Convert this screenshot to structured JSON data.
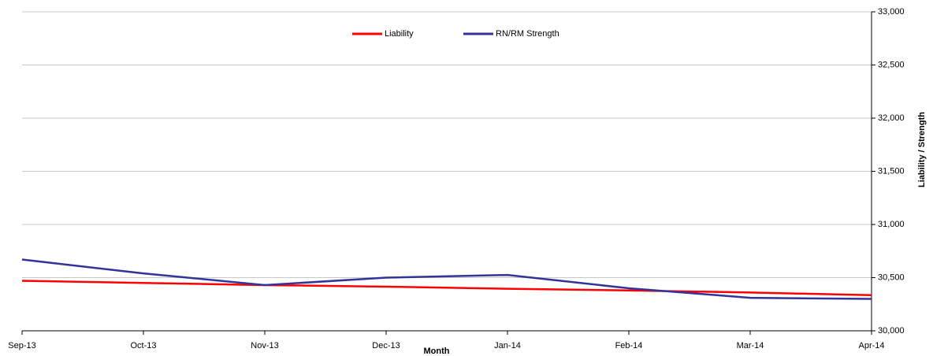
{
  "chart_data": {
    "type": "line",
    "x_label": "Month",
    "y_label": "Liability / Strength",
    "categories": [
      "Sep-13",
      "Oct-13",
      "Nov-13",
      "Dec-13",
      "Jan-14",
      "Feb-14",
      "Mar-14",
      "Apr-14"
    ],
    "series": [
      {
        "name": "Liability",
        "color": "#ff0000",
        "values": [
          30470,
          30450,
          30430,
          30415,
          30395,
          30380,
          30360,
          30335
        ]
      },
      {
        "name": "RN/RM Strength",
        "color": "#333399",
        "values": [
          30670,
          30540,
          30430,
          30500,
          30525,
          30400,
          30310,
          30300
        ]
      }
    ],
    "ylim": [
      30000,
      33000
    ],
    "yticks": [
      {
        "value": 30000,
        "label": "30,000"
      },
      {
        "value": 30500,
        "label": "30,500"
      },
      {
        "value": 31000,
        "label": "31,000"
      },
      {
        "value": 31500,
        "label": "31,500"
      },
      {
        "value": 32000,
        "label": "32,000"
      },
      {
        "value": 32500,
        "label": "32,500"
      },
      {
        "value": 33000,
        "label": "33,000"
      }
    ],
    "grid": true,
    "legend": "top"
  }
}
